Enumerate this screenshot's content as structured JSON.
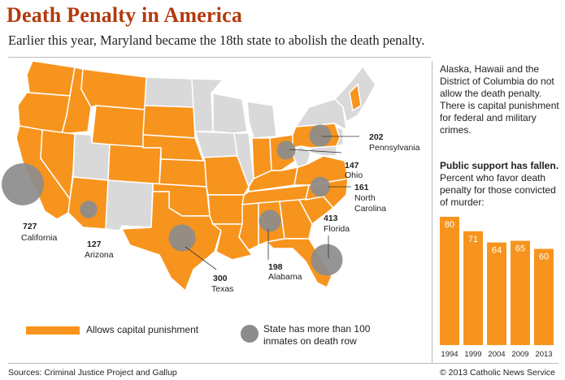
{
  "title": "Death Penalty in America",
  "subtitle": "Earlier this year, Maryland became the 18th state to abolish the death penalty.",
  "note": "Alaska, Hawaii and the District of Columbia do not allow the death penalty. There is capital punishment for federal and military crimes.",
  "support_title": "Public support has fallen.",
  "support_subtitle": "Percent who favor death penalty for those convicted of murder:",
  "legend": {
    "allows": "Allows capital punishment",
    "inmates_line1": "State has more than 100",
    "inmates_line2": "inmates on death row"
  },
  "source": "Sources: Criminal Justice Project and Gallup",
  "credit": "© 2013 Catholic News Service",
  "colors": {
    "title": "#b23a0e",
    "allows": "#f7941d",
    "abolished": "#d9d9d9",
    "circle": "#8c8c8c"
  },
  "chart_data": [
    {
      "type": "map",
      "series": [
        {
          "name": "inmates on death row",
          "points": [
            {
              "state": "California",
              "value": 727
            },
            {
              "state": "Arizona",
              "value": 127
            },
            {
              "state": "Texas",
              "value": 300
            },
            {
              "state": "Alabama",
              "value": 198
            },
            {
              "state": "Florida",
              "value": 413
            },
            {
              "state": "North Carolina",
              "value": 161
            },
            {
              "state": "Ohio",
              "value": 147
            },
            {
              "state": "Pennsylvania",
              "value": 202
            }
          ]
        }
      ]
    },
    {
      "type": "bar",
      "categories": [
        "1994",
        "1999",
        "2004",
        "2009",
        "2013"
      ],
      "values": [
        80,
        71,
        64,
        65,
        60
      ],
      "title": "Public support has fallen.",
      "ylim": [
        0,
        80
      ]
    }
  ]
}
